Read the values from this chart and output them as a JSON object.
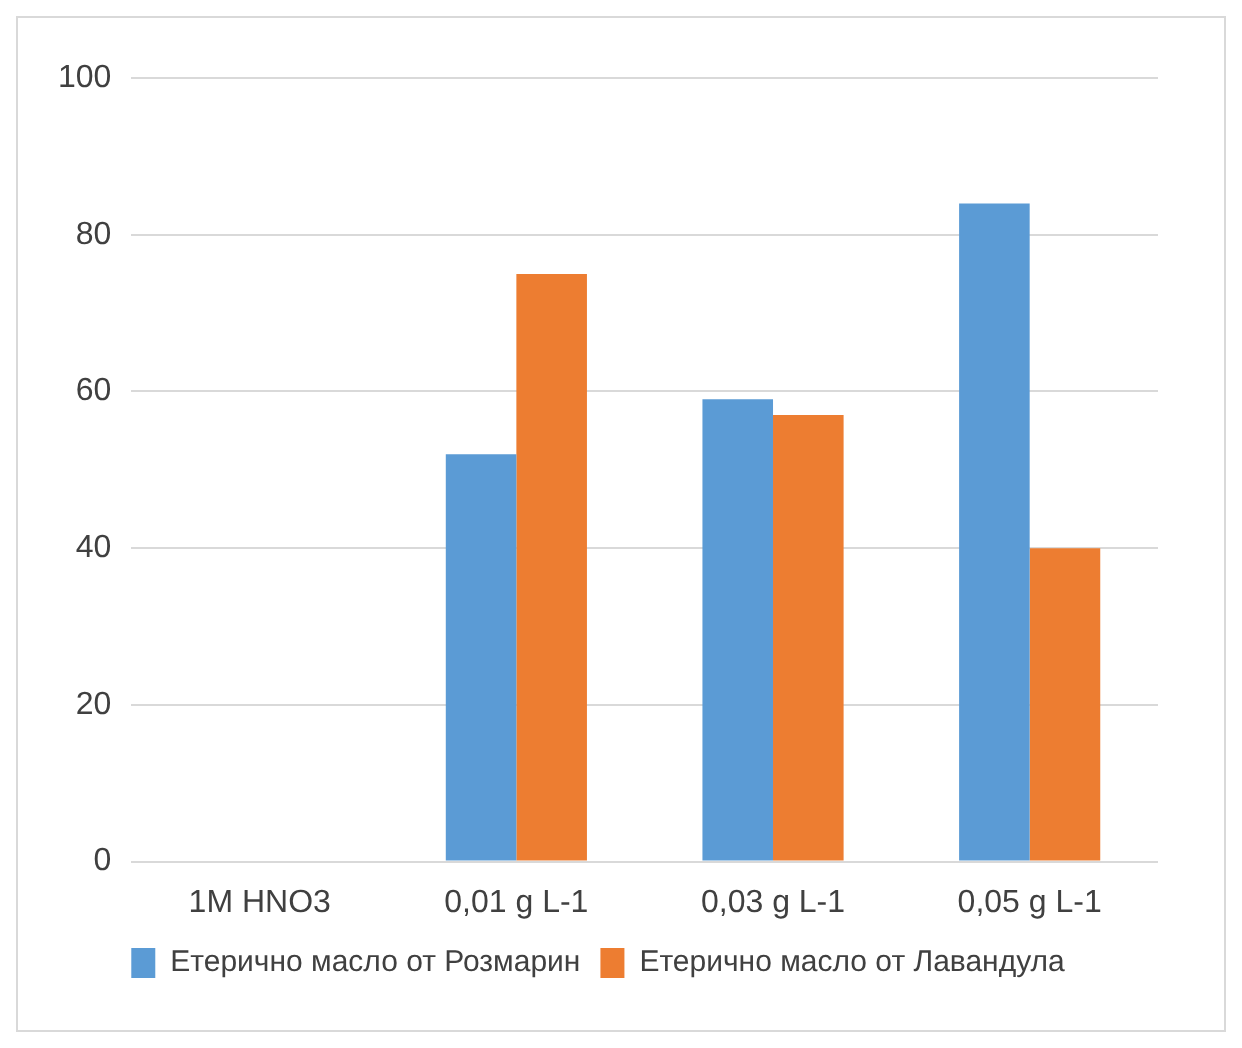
{
  "chart_data": {
    "type": "bar",
    "categories": [
      "1M HNO3",
      "0,01 g L-1",
      "0,03 g L-1",
      "0,05 g L-1"
    ],
    "series": [
      {
        "name": "Етерично масло от Розмарин",
        "color": "#5b9bd5",
        "values": [
          0,
          52,
          59,
          84
        ]
      },
      {
        "name": "Етерично масло от Лавандула",
        "color": "#ed7d31",
        "values": [
          0,
          75,
          57,
          40
        ]
      }
    ],
    "ylim": [
      0,
      100
    ],
    "yticks": [
      0,
      20,
      40,
      60,
      80,
      100
    ],
    "grid": "y",
    "legend": "bottom"
  }
}
